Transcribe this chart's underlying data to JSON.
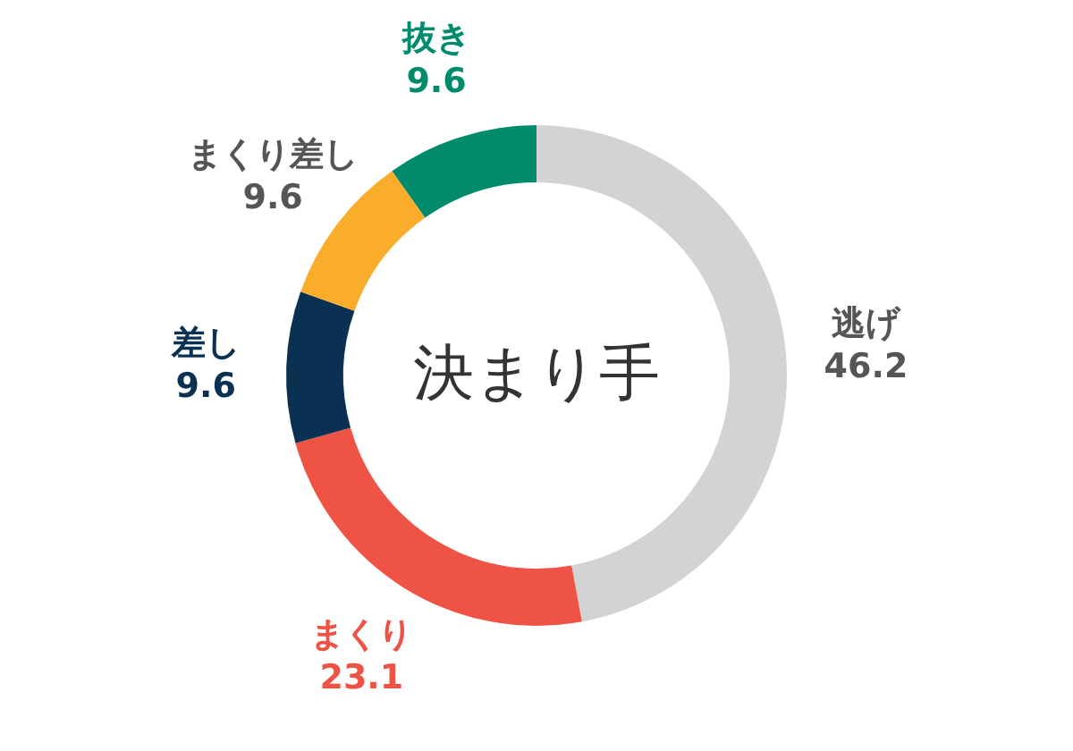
{
  "chart_data": {
    "type": "donut",
    "title": "決まり手",
    "categories": [
      "逃げ",
      "まくり",
      "差し",
      "まくり差し",
      "抜き"
    ],
    "values": [
      46.2,
      23.1,
      9.6,
      9.6,
      9.6
    ],
    "colors": [
      "#d3d3d3",
      "#ef5345",
      "#0a3152",
      "#f9ad2a",
      "#008c6c"
    ],
    "data_labels": true,
    "legend": false
  }
}
